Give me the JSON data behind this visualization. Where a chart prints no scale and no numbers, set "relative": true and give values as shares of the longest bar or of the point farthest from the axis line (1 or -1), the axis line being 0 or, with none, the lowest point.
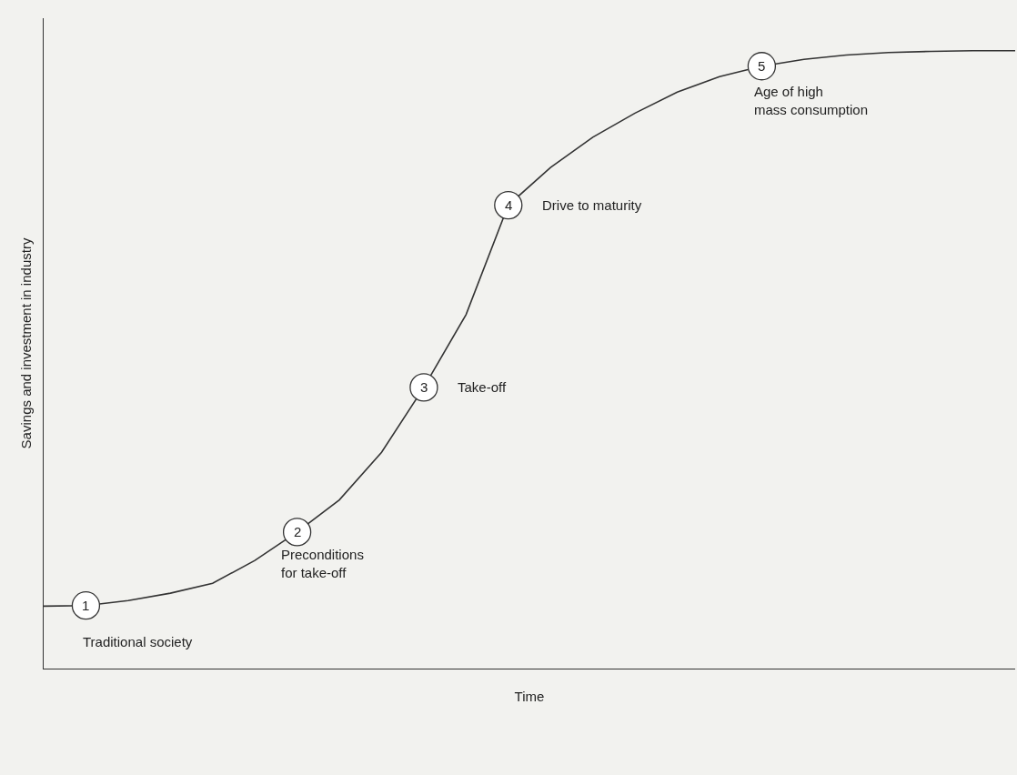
{
  "chart_data": {
    "type": "line",
    "relative": true,
    "xlabel": "Time",
    "ylabel": "Savings and investment in industry",
    "categories": [
      null,
      null,
      null,
      null,
      null,
      null,
      null,
      null,
      null,
      null,
      null,
      null,
      null,
      null,
      null,
      null,
      null,
      null,
      null,
      null,
      null,
      null,
      null,
      null
    ],
    "series": [
      {
        "color": "#333333",
        "values": [
          0.101,
          0.102,
          0.11,
          0.122,
          0.138,
          0.175,
          0.221,
          0.273,
          0.35,
          0.455,
          0.573,
          0.75,
          0.811,
          0.86,
          0.899,
          0.933,
          0.958,
          0.975,
          0.986,
          0.993,
          0.997,
          0.999,
          1.0,
          1.0
        ]
      }
    ],
    "annotations": [
      "1",
      "Traditional society",
      "2",
      "Preconditions\nfor take-off",
      "3",
      "Take-off",
      "4",
      "Drive to maturity",
      "5",
      "Age of high\nmass consumption"
    ],
    "grid": false
  }
}
